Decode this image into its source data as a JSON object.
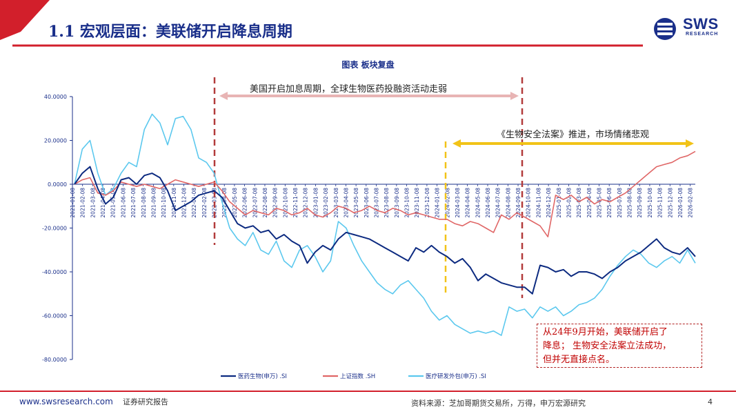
{
  "header": {
    "title": "1.1 宏观层面：美联储开启降息周期",
    "logo_text": "SWS",
    "logo_sub": "RESEARCH"
  },
  "chart_title": "图表  板块复盘",
  "annotations": {
    "rate_hike": "美国开启加息周期，全球生物医药投融资活动走弱",
    "biosecure": "《生物安全法案》推进，市场情绪悲观",
    "note_line1": "从24年9月开始，美联储开启了",
    "note_line2": "降息； 生物安全法案立法成功，",
    "note_line3": "但并无直接点名。"
  },
  "footer": {
    "website": "www.swsresearch.com",
    "report": "证券研究报告",
    "source": "资料来源：芝加哥期货交易所，万得，申万宏源研究",
    "page": "4"
  },
  "colors": {
    "brand_blue": "#1a2f8a",
    "brand_red": "#d21f2b",
    "series_pharma": "#0c2a80",
    "series_shanghai": "#e06666",
    "series_cro": "#5bc8ee",
    "arrow_pink": "#e8b4b4",
    "arrow_yellow": "#f2c318",
    "dash_red": "#b23b3b"
  },
  "chart_data": {
    "type": "line",
    "title": "图表  板块复盘",
    "ylim": [
      -80,
      40
    ],
    "y_ticks": [
      "40.0000",
      "20.0000",
      "0.0000",
      "-20.0000",
      "-40.0000",
      "-60.0000",
      "-80.0000"
    ],
    "x_ticks": [
      "2021-01-08",
      "2021-02-08",
      "2021-03-08",
      "2021-04-08",
      "2021-05-08",
      "2021-06-08",
      "2021-07-08",
      "2021-08-08",
      "2021-09-08",
      "2021-10-08",
      "2021-11-08",
      "2021-12-08",
      "2022-01-08",
      "2022-02-08",
      "2022-03-08",
      "2022-04-08",
      "2022-05-08",
      "2022-06-08",
      "2022-07-08",
      "2022-08-08",
      "2022-09-08",
      "2022-10-08",
      "2022-11-08",
      "2022-12-08",
      "2023-01-08",
      "2023-02-08",
      "2023-03-08",
      "2023-04-08",
      "2023-05-08",
      "2023-06-08",
      "2023-07-08",
      "2023-08-08",
      "2023-09-08",
      "2023-10-08",
      "2023-11-08",
      "2023-12-08",
      "2024-01-08",
      "2024-02-08",
      "2024-03-08",
      "2024-04-08",
      "2024-05-08",
      "2024-06-08",
      "2024-07-08",
      "2024-08-08",
      "2024-09-08",
      "2024-10-08",
      "2024-11-08",
      "2024-12-08",
      "2025-01-08",
      "2025-02-08",
      "2025-03-08",
      "2025-04-08",
      "2025-05-08",
      "2025-06-08",
      "2025-07-08",
      "2025-08-08",
      "2025-09-08",
      "2025-10-08",
      "2025-11-08",
      "2025-12-08",
      "2026-01-08",
      "2026-02-08"
    ],
    "legend_position": "bottom",
    "series": [
      {
        "name": "医药生物(申万) .SI",
        "values": [
          0,
          5,
          8,
          -2,
          -9,
          -6,
          2,
          3,
          0,
          4,
          5,
          3,
          -3,
          -12,
          -10,
          -8,
          -5,
          -4,
          -3,
          -6,
          -12,
          -18,
          -20,
          -19,
          -22,
          -21,
          -25,
          -23,
          -26,
          -28,
          -36,
          -31,
          -28,
          -30,
          -25,
          -22,
          -23,
          -24,
          -25,
          -27,
          -29,
          -31,
          -33,
          -35,
          -29,
          -31,
          -28,
          -31,
          -33,
          -36,
          -34,
          -38,
          -44,
          -41,
          -43,
          -45,
          -46,
          -47,
          -47,
          -50,
          -37,
          -38,
          -40,
          -39,
          -42,
          -40,
          -40,
          -41,
          -43,
          -40,
          -38,
          -35,
          -33,
          -31,
          -28,
          -25,
          -29,
          -31,
          -32,
          -29,
          -33
        ]
      },
      {
        "name": "上证指数 .SH",
        "values": [
          0,
          2,
          3,
          -4,
          -5,
          -3,
          1,
          0,
          -1,
          0,
          -1,
          -2,
          0,
          2,
          1,
          0,
          -1,
          0,
          1,
          -3,
          -8,
          -11,
          -14,
          -12,
          -13,
          -14,
          -11,
          -12,
          -14,
          -13,
          -11,
          -14,
          -15,
          -13,
          -10,
          -11,
          -13,
          -12,
          -10,
          -12,
          -13,
          -11,
          -12,
          -14,
          -13,
          -14,
          -15,
          -16,
          -16,
          -18,
          -19,
          -17,
          -18,
          -20,
          -22,
          -14,
          -16,
          -13,
          -15,
          -17,
          -19,
          -24,
          -5,
          -7,
          -5,
          -8,
          -6,
          -9,
          -7,
          -8,
          -6,
          -4,
          -1,
          2,
          5,
          8,
          9,
          10,
          12,
          13,
          15
        ]
      },
      {
        "name": "医疗研发外包(申万) .SI",
        "values": [
          0,
          16,
          20,
          5,
          -5,
          -2,
          5,
          10,
          8,
          25,
          32,
          28,
          18,
          30,
          31,
          25,
          12,
          10,
          5,
          -8,
          -20,
          -25,
          -28,
          -22,
          -30,
          -32,
          -26,
          -35,
          -38,
          -30,
          -28,
          -33,
          -40,
          -35,
          -17,
          -20,
          -28,
          -35,
          -40,
          -45,
          -48,
          -50,
          -46,
          -44,
          -48,
          -52,
          -58,
          -62,
          -60,
          -64,
          -66,
          -68,
          -67,
          -68,
          -67,
          -69,
          -56,
          -58,
          -57,
          -61,
          -56,
          -58,
          -56,
          -60,
          -58,
          -55,
          -54,
          -52,
          -48,
          -42,
          -37,
          -33,
          -30,
          -32,
          -36,
          -38,
          -35,
          -33,
          -36,
          -30,
          -36
        ]
      }
    ],
    "events": [
      {
        "date": "2022-03",
        "label": "美国开启加息周期，全球生物医药投融资活动走弱"
      },
      {
        "date": "2024-01",
        "label": "《生物安全法案》推进，市场情绪悲观"
      },
      {
        "date": "2024-09",
        "label": "从24年9月开始，美联储开启了降息"
      }
    ]
  }
}
